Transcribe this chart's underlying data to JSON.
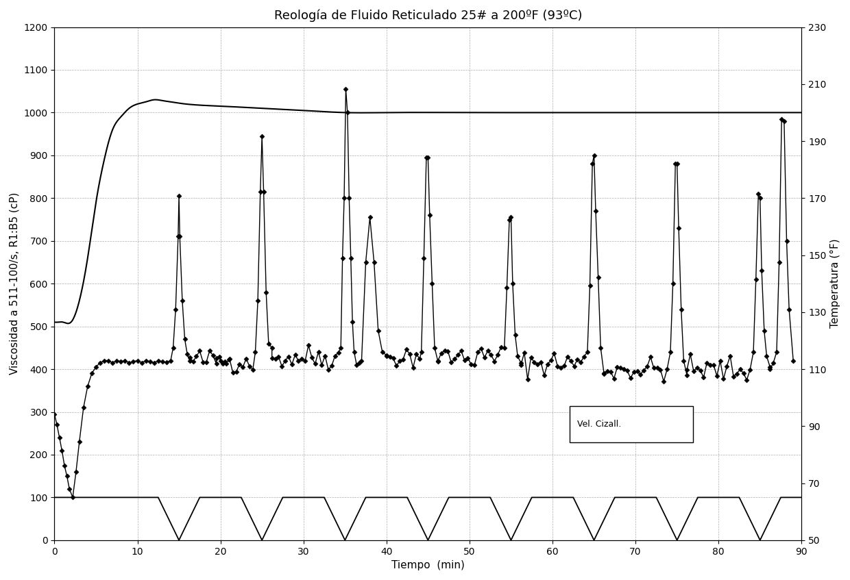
{
  "title": "Reología de Fluido Reticulado 25# a 200ºF (93ºC)",
  "xlabel": "Tiempo  (min)",
  "ylabel_left": "Viscosidad a 511-100/s, R1:B5 (cP)",
  "ylabel_right": "Temperatura (°F)",
  "xlim": [
    0,
    90
  ],
  "ylim_left": [
    0,
    1200
  ],
  "ylim_right": [
    50,
    230
  ],
  "xticks": [
    0,
    10,
    20,
    30,
    40,
    50,
    60,
    70,
    80,
    90
  ],
  "yticks_left": [
    0,
    100,
    200,
    300,
    400,
    500,
    600,
    700,
    800,
    900,
    1000,
    1100,
    1200
  ],
  "yticks_right": [
    50,
    70,
    90,
    110,
    130,
    150,
    170,
    190,
    210,
    230
  ],
  "legend_label": "Vel. Cizall.",
  "bg_color": "#ffffff",
  "title_fontsize": 13,
  "label_fontsize": 11,
  "tick_fontsize": 10,
  "temp_curve_x": [
    0,
    0.5,
    1,
    2,
    3,
    4,
    5,
    6,
    7,
    8,
    9,
    10,
    11,
    12,
    13,
    14,
    15,
    17,
    20,
    25,
    30,
    35,
    40,
    50,
    60,
    70,
    80,
    90
  ],
  "temp_curve_y": [
    510,
    510,
    510,
    510,
    560,
    660,
    790,
    890,
    960,
    990,
    1010,
    1020,
    1025,
    1030,
    1028,
    1025,
    1022,
    1018,
    1015,
    1010,
    1005,
    1000,
    1000,
    1000,
    1000,
    1000,
    1000,
    1000
  ],
  "shear_dip_centers": [
    15,
    25,
    35,
    45,
    55,
    65,
    75,
    85
  ],
  "shear_dip_half": 2.5,
  "shear_base": 100,
  "visc_init_t": [
    0,
    0.3,
    0.6,
    0.9,
    1.2,
    1.5,
    1.8,
    2.2,
    2.6,
    3.0,
    3.5,
    4.0,
    4.5,
    5.0,
    5.5,
    6.0,
    6.5,
    7.0,
    7.5,
    8.0,
    8.5,
    9.0,
    9.5,
    10.0,
    10.5,
    11.0,
    11.5,
    12.0,
    12.5,
    13.0,
    13.5,
    14.0
  ],
  "visc_init_v": [
    295,
    270,
    240,
    210,
    175,
    150,
    120,
    100,
    160,
    230,
    310,
    360,
    390,
    405,
    415,
    420,
    420,
    415,
    420,
    418,
    420,
    415,
    418,
    420,
    415,
    420,
    418,
    415,
    420,
    418,
    416,
    420
  ],
  "visc_spikes": [
    {
      "t": [
        14.3,
        14.6,
        14.9,
        15.0,
        15.1,
        15.4,
        15.7,
        16.0,
        16.3
      ],
      "v": [
        450,
        540,
        710,
        805,
        710,
        560,
        470,
        435,
        420
      ]
    },
    {
      "t": [
        19.5,
        20.0,
        20.5,
        21.0
      ],
      "v": [
        425,
        420,
        418,
        422
      ]
    },
    {
      "t": [
        24.2,
        24.5,
        24.8,
        25.0,
        25.2,
        25.5,
        25.8,
        26.2
      ],
      "v": [
        440,
        560,
        815,
        945,
        815,
        580,
        460,
        425
      ]
    },
    {
      "t": [
        34.5,
        34.7,
        34.9,
        35.1,
        35.3,
        35.5,
        35.7,
        35.9,
        36.1,
        36.4,
        36.7,
        37.0
      ],
      "v": [
        450,
        660,
        800,
        1055,
        1000,
        800,
        660,
        510,
        440,
        410,
        415,
        420
      ]
    },
    {
      "t": [
        37.5,
        38.0,
        38.5,
        39.0,
        39.5,
        40.0
      ],
      "v": [
        650,
        755,
        650,
        490,
        440,
        430
      ]
    },
    {
      "t": [
        44.2,
        44.5,
        44.8,
        45.0,
        45.2,
        45.5,
        45.8,
        46.2
      ],
      "v": [
        440,
        660,
        895,
        895,
        760,
        600,
        450,
        420
      ]
    },
    {
      "t": [
        54.2,
        54.5,
        54.8,
        55.0,
        55.2,
        55.5,
        55.8,
        56.2
      ],
      "v": [
        450,
        590,
        750,
        755,
        600,
        480,
        430,
        410
      ]
    },
    {
      "t": [
        64.2,
        64.5,
        64.8,
        65.0,
        65.2,
        65.5,
        65.8,
        66.2
      ],
      "v": [
        440,
        595,
        880,
        900,
        770,
        615,
        450,
        390
      ]
    },
    {
      "t": [
        74.2,
        74.5,
        74.8,
        75.0,
        75.2,
        75.5,
        75.8,
        76.2
      ],
      "v": [
        440,
        600,
        880,
        880,
        730,
        540,
        420,
        385
      ]
    },
    {
      "t": [
        84.2,
        84.5,
        84.8,
        85.0,
        85.2,
        85.5,
        85.8,
        86.2
      ],
      "v": [
        440,
        610,
        810,
        800,
        630,
        490,
        430,
        405
      ]
    },
    {
      "t": [
        87.0,
        87.3,
        87.6,
        87.9,
        88.2,
        88.5,
        89.0
      ],
      "v": [
        440,
        650,
        985,
        980,
        700,
        540,
        420
      ]
    }
  ],
  "visc_steady_segments": [
    {
      "t_start": 16.3,
      "t_end": 24.2,
      "base": 420,
      "noise": 15
    },
    {
      "t_start": 26.2,
      "t_end": 34.5,
      "base": 428,
      "noise": 15
    },
    {
      "t_start": 40.0,
      "t_end": 44.2,
      "base": 430,
      "noise": 15
    },
    {
      "t_start": 46.2,
      "t_end": 54.2,
      "base": 428,
      "noise": 15
    },
    {
      "t_start": 56.2,
      "t_end": 64.2,
      "base": 415,
      "noise": 15
    },
    {
      "t_start": 66.2,
      "t_end": 74.2,
      "base": 400,
      "noise": 15
    },
    {
      "t_start": 76.2,
      "t_end": 84.2,
      "base": 398,
      "noise": 15
    },
    {
      "t_start": 86.2,
      "t_end": 87.0,
      "base": 410,
      "noise": 10
    }
  ]
}
